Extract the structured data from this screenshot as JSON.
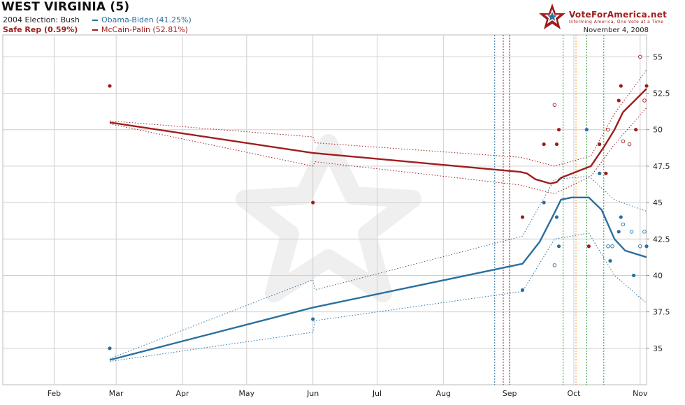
{
  "header": {
    "title": "WEST VIRGINIA (5)",
    "election_2004": "2004 Election: Bush",
    "status": "Safe Rep (0.59%)",
    "brand_name": "VoteForAmerica.net",
    "brand_tagline": "Informing America, One Vote at a Time",
    "date": "November 4, 2008"
  },
  "colors": {
    "dem": "#2a6f9e",
    "rep": "#a01c1c",
    "grid": "#cfcfcf"
  },
  "chart_data": {
    "type": "line",
    "title": "WEST VIRGINIA (5)",
    "xlabel": "",
    "ylabel": "",
    "x_tick_labels": [
      "Feb",
      "Mar",
      "Apr",
      "May",
      "Jun",
      "Jul",
      "Aug",
      "Sep",
      "Oct",
      "Nov"
    ],
    "x_tick_dates": [
      "2008-02-01",
      "2008-03-01",
      "2008-04-01",
      "2008-05-01",
      "2008-06-01",
      "2008-07-01",
      "2008-08-01",
      "2008-09-01",
      "2008-10-01",
      "2008-11-01"
    ],
    "x_range": [
      "2008-01-08",
      "2008-11-04"
    ],
    "ylim": [
      32.5,
      56.5
    ],
    "y_ticks": [
      35,
      37.5,
      40,
      42.5,
      45,
      47.5,
      50,
      52.5,
      55
    ],
    "y_tick_labels": [
      "35",
      "37.5",
      "40",
      "42.5",
      "45",
      "47.5",
      "50",
      "52.5",
      "55"
    ],
    "grid": true,
    "legend_position": "top-left",
    "series": [
      {
        "name": "Obama-Biden (41.25%)",
        "color": "#2a6f9e",
        "trend": [
          [
            "2008-02-27",
            34.2
          ],
          [
            "2008-06-01",
            37.8
          ],
          [
            "2008-09-07",
            40.8
          ],
          [
            "2008-09-15",
            42.3
          ],
          [
            "2008-09-22",
            44.3
          ],
          [
            "2008-09-25",
            45.2
          ],
          [
            "2008-09-30",
            45.35
          ],
          [
            "2008-10-08",
            45.35
          ],
          [
            "2008-10-14",
            44.5
          ],
          [
            "2008-10-20",
            42.5
          ],
          [
            "2008-10-25",
            41.7
          ],
          [
            "2008-11-04",
            41.25
          ]
        ],
        "band_upper": [
          [
            "2008-02-27",
            34.3
          ],
          [
            "2008-06-01",
            39.7
          ],
          [
            "2008-06-02",
            39.0
          ],
          [
            "2008-09-07",
            42.7
          ],
          [
            "2008-09-22",
            46.6
          ],
          [
            "2008-10-08",
            46.8
          ],
          [
            "2008-10-20",
            45.2
          ],
          [
            "2008-11-04",
            44.4
          ]
        ],
        "band_lower": [
          [
            "2008-02-27",
            34.1
          ],
          [
            "2008-06-01",
            36.1
          ],
          [
            "2008-06-02",
            36.9
          ],
          [
            "2008-09-07",
            38.9
          ],
          [
            "2008-09-22",
            42.5
          ],
          [
            "2008-10-08",
            42.9
          ],
          [
            "2008-10-20",
            40.0
          ],
          [
            "2008-11-04",
            38.1
          ]
        ],
        "polls": [
          [
            "2008-02-27",
            35.0,
            true
          ],
          [
            "2008-06-01",
            37.0,
            true
          ],
          [
            "2008-09-07",
            39.0,
            true
          ],
          [
            "2008-09-17",
            45.0,
            true
          ],
          [
            "2008-09-23",
            44.0,
            true
          ],
          [
            "2008-09-24",
            42.0,
            true
          ],
          [
            "2008-10-07",
            50.0,
            true
          ],
          [
            "2008-10-13",
            47.0,
            true
          ],
          [
            "2008-10-18",
            41.0,
            true
          ],
          [
            "2008-10-22",
            43.0,
            true
          ],
          [
            "2008-10-23",
            44.0,
            true
          ],
          [
            "2008-10-29",
            40.0,
            true
          ],
          [
            "2008-11-04",
            42.0,
            true
          ],
          [
            "2008-09-22",
            40.7,
            false
          ],
          [
            "2008-10-17",
            42.0,
            false
          ],
          [
            "2008-10-19",
            42.0,
            false
          ],
          [
            "2008-10-24",
            43.5,
            false
          ],
          [
            "2008-10-28",
            43.0,
            false
          ],
          [
            "2008-11-01",
            42.0,
            false
          ],
          [
            "2008-11-03",
            43.0,
            false
          ]
        ]
      },
      {
        "name": "McCain-Palin (52.81%)",
        "color": "#a01c1c",
        "trend": [
          [
            "2008-02-27",
            50.5
          ],
          [
            "2008-06-01",
            48.4
          ],
          [
            "2008-09-06",
            47.1
          ],
          [
            "2008-09-09",
            47.0
          ],
          [
            "2008-09-13",
            46.6
          ],
          [
            "2008-09-20",
            46.3
          ],
          [
            "2008-09-23",
            46.4
          ],
          [
            "2008-09-25",
            46.7
          ],
          [
            "2008-10-09",
            47.5
          ],
          [
            "2008-10-15",
            48.8
          ],
          [
            "2008-10-20",
            50.0
          ],
          [
            "2008-10-24",
            51.2
          ],
          [
            "2008-11-04",
            52.81
          ]
        ],
        "band_upper": [
          [
            "2008-02-27",
            50.6
          ],
          [
            "2008-06-01",
            49.5
          ],
          [
            "2008-06-02",
            49.1
          ],
          [
            "2008-09-06",
            48.1
          ],
          [
            "2008-09-22",
            47.5
          ],
          [
            "2008-10-09",
            48.2
          ],
          [
            "2008-10-20",
            51.1
          ],
          [
            "2008-11-04",
            54.1
          ]
        ],
        "band_lower": [
          [
            "2008-02-27",
            50.4
          ],
          [
            "2008-06-01",
            47.5
          ],
          [
            "2008-06-02",
            47.8
          ],
          [
            "2008-09-06",
            46.2
          ],
          [
            "2008-09-22",
            45.6
          ],
          [
            "2008-10-09",
            46.8
          ],
          [
            "2008-10-20",
            49.0
          ],
          [
            "2008-11-04",
            51.5
          ]
        ],
        "polls": [
          [
            "2008-02-27",
            53.0,
            true
          ],
          [
            "2008-06-01",
            45.0,
            true
          ],
          [
            "2008-09-07",
            44.0,
            true
          ],
          [
            "2008-09-17",
            49.0,
            true
          ],
          [
            "2008-09-23",
            49.0,
            true
          ],
          [
            "2008-09-24",
            50.0,
            true
          ],
          [
            "2008-10-08",
            42.0,
            true
          ],
          [
            "2008-10-13",
            49.0,
            true
          ],
          [
            "2008-10-16",
            47.0,
            true
          ],
          [
            "2008-10-22",
            52.0,
            true
          ],
          [
            "2008-10-23",
            53.0,
            true
          ],
          [
            "2008-10-30",
            50.0,
            true
          ],
          [
            "2008-11-04",
            53.0,
            true
          ],
          [
            "2008-09-22",
            51.7,
            false
          ],
          [
            "2008-10-17",
            50.0,
            false
          ],
          [
            "2008-10-24",
            49.2,
            false
          ],
          [
            "2008-10-27",
            49.0,
            false
          ],
          [
            "2008-11-01",
            55.0,
            false
          ],
          [
            "2008-11-03",
            52.0,
            false
          ]
        ]
      }
    ],
    "event_lines": [
      {
        "date": "2008-08-25",
        "color": "#2a6f9e"
      },
      {
        "date": "2008-08-29",
        "color": "#a01c1c"
      },
      {
        "date": "2008-09-01",
        "color": "#a01c1c"
      },
      {
        "date": "2008-09-26",
        "color": "#2a9b3a"
      },
      {
        "date": "2008-10-02",
        "color": "#f0a020"
      },
      {
        "date": "2008-10-07",
        "color": "#2a9b3a"
      },
      {
        "date": "2008-10-15",
        "color": "#2a9b3a"
      }
    ]
  }
}
